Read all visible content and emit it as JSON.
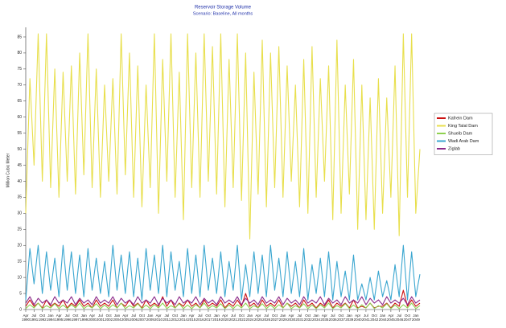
{
  "chart_data": {
    "type": "line",
    "title": "Reservoir Storage Volume",
    "subtitle": "Scenario: Baseline, All months",
    "y_label": "Million Cubic Meter",
    "legend": "right",
    "ylim": [
      0,
      87
    ],
    "yticks": [
      0,
      5,
      10,
      15,
      20,
      25,
      30,
      35,
      40,
      45,
      50,
      55,
      60,
      65,
      70,
      75,
      80,
      85
    ],
    "categories": [
      "Apr 1990",
      null,
      "Jul 1991",
      null,
      "Oct 1992",
      null,
      "Jan 1994",
      null,
      "Apr 1995",
      null,
      "Jul 1996",
      null,
      "Oct 1997",
      null,
      "Jan 1999",
      null,
      "Apr 2000",
      null,
      "Jul 2001",
      null,
      "Oct 2002",
      null,
      "Jan 2004",
      null,
      "Apr 2005",
      null,
      "Jul 2006",
      null,
      "Oct 2007",
      null,
      "Jan 2009",
      null,
      "Apr 2010",
      null,
      "Jul 2011",
      null,
      "Oct 2012",
      null,
      "Jan 2014",
      null,
      "Apr 2015",
      null,
      "Jul 2016",
      null,
      "Oct 2017",
      null,
      "Jan 2019",
      null,
      "Apr 2020",
      null,
      "Jul 2021",
      null,
      "Oct 2022",
      null,
      "Jan 2024",
      null,
      "Apr 2025",
      null,
      "Jul 2026",
      null,
      "Oct 2027",
      null,
      "Jan 2029",
      null,
      "Apr 2030",
      null,
      "Jul 2031",
      null,
      "Oct 2032",
      null,
      "Jan 2034",
      null,
      "Apr 2035",
      null,
      "Jul 2036",
      null,
      "Oct 2037",
      null,
      "Jan 2039",
      null,
      "Apr 2040",
      null,
      "Jul 2041",
      null,
      "Oct 2042",
      null,
      "Jan 2044",
      null,
      "Apr 2045",
      null,
      "Jul 2046",
      null,
      "Oct 2047",
      null,
      "Jan 2049",
      null
    ],
    "series": [
      {
        "name": "Kafrein Dam",
        "color": "#cc1111",
        "values": [
          1,
          3,
          1,
          2,
          0.5,
          3,
          1,
          2,
          1,
          3,
          0.5,
          2,
          1,
          3,
          1,
          2,
          0.5,
          3,
          1,
          2,
          1,
          3,
          0.5,
          2,
          1,
          3,
          1,
          2,
          0.5,
          3,
          1,
          2,
          1,
          4,
          1,
          3,
          0.5,
          2,
          1,
          3,
          1,
          2,
          0.5,
          3,
          1,
          2,
          1,
          3,
          0.5,
          2,
          1,
          3,
          1,
          5,
          1,
          2,
          0.5,
          3,
          1,
          2,
          1,
          3,
          0.5,
          2,
          1,
          2,
          0.5,
          3,
          1,
          2,
          0.5,
          2,
          1,
          3,
          0.5,
          2,
          1,
          2,
          0.5,
          3,
          0.5,
          1,
          0.5,
          2,
          0.5,
          1,
          1,
          2,
          0.5,
          2,
          1,
          6,
          1,
          3,
          1,
          2
        ]
      },
      {
        "name": "King Talal Dam",
        "color": "#e8df4c",
        "values": [
          30,
          72,
          45,
          86,
          40,
          86,
          38,
          75,
          35,
          74,
          40,
          76,
          36,
          80,
          42,
          86,
          38,
          75,
          35,
          70,
          40,
          72,
          36,
          86,
          42,
          80,
          35,
          76,
          32,
          70,
          38,
          86,
          30,
          78,
          40,
          86,
          35,
          74,
          28,
          86,
          38,
          80,
          35,
          86,
          40,
          82,
          36,
          86,
          32,
          78,
          38,
          86,
          34,
          80,
          22,
          74,
          36,
          84,
          32,
          80,
          38,
          82,
          35,
          76,
          40,
          70,
          32,
          78,
          30,
          82,
          35,
          72,
          40,
          76,
          28,
          84,
          30,
          70,
          36,
          78,
          25,
          70,
          28,
          66,
          25,
          72,
          30,
          66,
          35,
          76,
          23,
          86,
          35,
          86,
          30,
          50
        ]
      },
      {
        "name": "Shueib Dam",
        "color": "#8fd14f",
        "values": [
          0.3,
          1.5,
          0.5,
          2,
          0.3,
          1.2,
          0.5,
          1.8,
          0.3,
          1.4,
          0.3,
          1.5,
          0.5,
          2,
          0.3,
          1.2,
          0.5,
          1.8,
          0.3,
          1.4,
          0.3,
          1.5,
          0.5,
          2,
          0.3,
          1.2,
          0.5,
          1.8,
          0.3,
          1.4,
          0.3,
          1.5,
          0.5,
          2,
          0.3,
          1.2,
          0.5,
          1.8,
          0.3,
          1.4,
          0.3,
          1.5,
          0.5,
          2,
          0.3,
          1.2,
          0.5,
          1.8,
          0.3,
          1.4,
          0.3,
          1.5,
          0.5,
          2,
          0.3,
          1.2,
          0.5,
          1.8,
          0.3,
          1.4,
          0.3,
          1.5,
          0.5,
          2,
          0.3,
          1.2,
          0.5,
          1.8,
          0.3,
          1.4,
          0.3,
          1.5,
          0.5,
          2,
          0.3,
          1.2,
          0.5,
          1.8,
          0.3,
          1.4,
          0.3,
          1.5,
          0.5,
          2,
          0.3,
          1.2,
          0.5,
          1.8,
          0.3,
          1.4,
          0.3,
          1.5,
          0.5,
          2,
          0.3,
          1.2
        ]
      },
      {
        "name": "Wadi Arab Dam",
        "color": "#3aa6d0",
        "values": [
          3,
          19,
          8,
          20,
          5,
          18,
          6,
          16,
          4,
          20,
          6,
          18,
          5,
          17,
          4,
          19,
          6,
          16,
          5,
          15,
          4,
          20,
          6,
          17,
          5,
          18,
          4,
          16,
          3,
          19,
          6,
          17,
          5,
          20,
          4,
          18,
          6,
          15,
          4,
          19,
          5,
          17,
          4,
          20,
          6,
          16,
          5,
          18,
          4,
          15,
          6,
          20,
          3,
          14,
          4,
          18,
          5,
          17,
          4,
          20,
          6,
          16,
          4,
          18,
          5,
          15,
          4,
          19,
          3,
          14,
          5,
          16,
          4,
          18,
          3,
          15,
          4,
          12,
          3,
          17,
          3,
          8,
          3,
          10,
          3,
          12,
          4,
          9,
          3,
          14,
          4,
          20,
          3,
          18,
          4,
          11
        ]
      },
      {
        "name": "Ziglab",
        "color": "#8b2a8b",
        "values": [
          2,
          4,
          1.5,
          3.5,
          2,
          3,
          1.5,
          4,
          2,
          3,
          2,
          4,
          1.5,
          3.5,
          2,
          3,
          1.5,
          4,
          2,
          3,
          2,
          4,
          1.5,
          3.5,
          2,
          3,
          1.5,
          4,
          2,
          3,
          2,
          4,
          1.5,
          3.5,
          2,
          3,
          1.5,
          4,
          2,
          3,
          2,
          4,
          1.5,
          3.5,
          2,
          3,
          1.5,
          4,
          2,
          3,
          2,
          4,
          1.5,
          3.5,
          2,
          3,
          1.5,
          4,
          2,
          3,
          2,
          4,
          1.5,
          3.5,
          2,
          3,
          1.5,
          4,
          2,
          3,
          2,
          4,
          1.5,
          3.5,
          2,
          3,
          1.5,
          4,
          2,
          3,
          2,
          4,
          1.5,
          3.5,
          2,
          3,
          1.5,
          4,
          2,
          3,
          2,
          3.5,
          1.5,
          4,
          2,
          3
        ]
      }
    ]
  }
}
